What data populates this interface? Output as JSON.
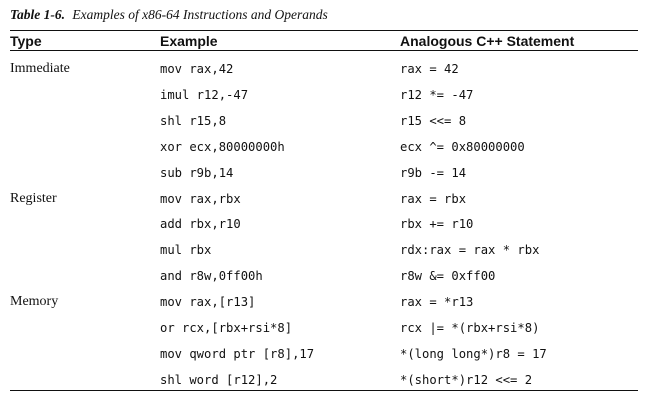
{
  "caption": {
    "label": "Table 1-6.",
    "text": "Examples of x86-64 Instructions and Operands"
  },
  "headers": [
    "Type",
    "Example",
    "Analogous C++ Statement"
  ],
  "rows": [
    {
      "type": "Immediate",
      "example": "mov rax,42",
      "cpp": "rax = 42"
    },
    {
      "type": "",
      "example": "imul r12,-47",
      "cpp": "r12 *= -47"
    },
    {
      "type": "",
      "example": "shl r15,8",
      "cpp": "r15 <<= 8"
    },
    {
      "type": "",
      "example": "xor ecx,80000000h",
      "cpp": "ecx ^= 0x80000000"
    },
    {
      "type": "",
      "example": "sub r9b,14",
      "cpp": "r9b -= 14"
    },
    {
      "type": "Register",
      "example": "mov rax,rbx",
      "cpp": "rax = rbx"
    },
    {
      "type": "",
      "example": "add rbx,r10",
      "cpp": "rbx += r10"
    },
    {
      "type": "",
      "example": "mul rbx",
      "cpp": "rdx:rax = rax * rbx"
    },
    {
      "type": "",
      "example": "and r8w,0ff00h",
      "cpp": "r8w &= 0xff00"
    },
    {
      "type": "Memory",
      "example": "mov rax,[r13]",
      "cpp": "rax = *r13"
    },
    {
      "type": "",
      "example": "or rcx,[rbx+rsi*8]",
      "cpp": "rcx |= *(rbx+rsi*8)"
    },
    {
      "type": "",
      "example": "mov qword ptr [r8],17",
      "cpp": "*(long long*)r8 = 17"
    },
    {
      "type": "",
      "example": "shl word [r12],2",
      "cpp": "*(short*)r12 <<= 2"
    }
  ]
}
